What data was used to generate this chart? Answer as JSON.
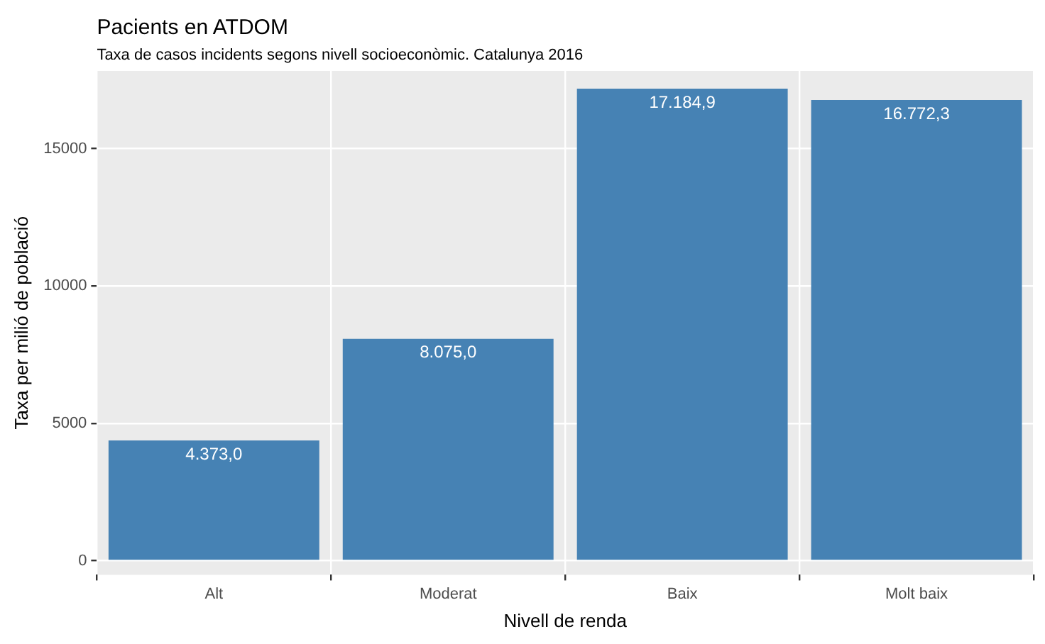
{
  "chart_data": {
    "type": "bar",
    "title": "Pacients en ATDOM",
    "subtitle": "Taxa de casos incidents segons nivell socioeconòmic. Catalunya 2016",
    "xlabel": "Nivell de renda",
    "ylabel": "Taxa per milió de població",
    "categories": [
      "Alt",
      "Moderat",
      "Baix",
      "Molt baix"
    ],
    "values": [
      4373.0,
      8075.0,
      17184.9,
      16772.3
    ],
    "value_labels": [
      "4.373,0",
      "8.075,0",
      "17.184,9",
      "16.772,3"
    ],
    "color": "#4682b4",
    "ylim": [
      -515,
      17830
    ],
    "yticks": [
      0,
      5000,
      10000,
      15000
    ],
    "grid": true,
    "legend": false
  }
}
